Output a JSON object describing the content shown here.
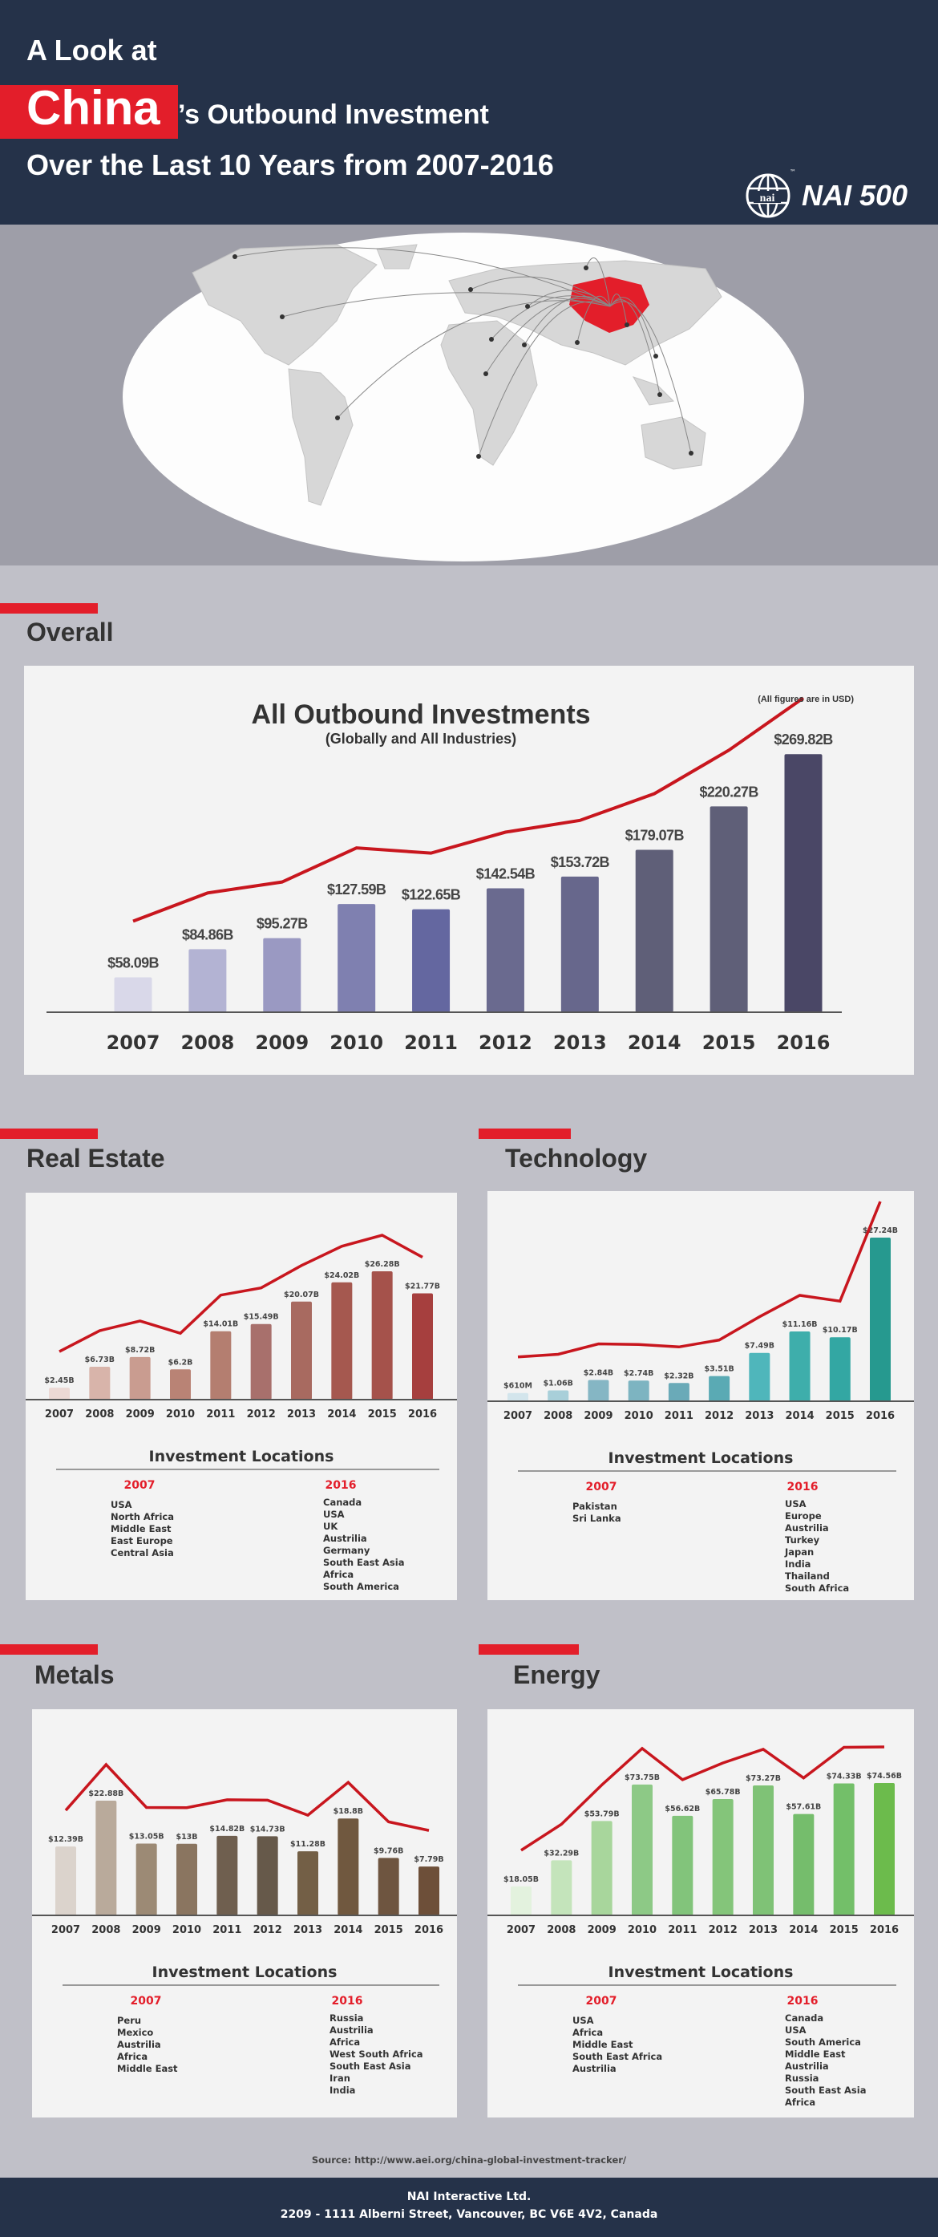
{
  "header": {
    "line1": "A Look at",
    "highlight": "China",
    "line2": "’s Outbound Investment",
    "line3": "Over the Last 10 Years from 2007-2016",
    "logo_text": "NAI 500",
    "logo_tm": "™",
    "logo_mark": "nai"
  },
  "sections": {
    "overall": "Overall",
    "real_estate": "Real Estate",
    "technology": "Technology",
    "metals": "Metals",
    "energy": "Energy"
  },
  "locations_title": "Investment Locations",
  "accent": "#e31e2a",
  "line_color": "#c8161e",
  "chart_data": [
    {
      "id": "overall",
      "type": "bar",
      "title": "All Outbound Investments",
      "subtitle": "(Globally and All Industries)",
      "note": "(All figures are in USD)",
      "categories": [
        "2007",
        "2008",
        "2009",
        "2010",
        "2011",
        "2012",
        "2013",
        "2014",
        "2015",
        "2016"
      ],
      "values": [
        58.09,
        84.86,
        95.27,
        127.59,
        122.65,
        142.54,
        153.72,
        179.07,
        220.27,
        269.82
      ],
      "labels": [
        "$58.09B",
        "$84.86B",
        "$95.27B",
        "$127.59B",
        "$122.65B",
        "$142.54B",
        "$153.72B",
        "$179.07B",
        "$220.27B",
        "$269.82B"
      ],
      "unit": "B USD",
      "ylim": [
        25,
        270
      ],
      "trend_line": true,
      "colors": [
        "#d9d8e9",
        "#b3b3d3",
        "#9a99c2",
        "#7f80b0",
        "#6467a0",
        "#6a6a8f",
        "#67678c",
        "#5f5f78",
        "#5f5f78",
        "#4a4766"
      ]
    },
    {
      "id": "real_estate",
      "type": "bar",
      "categories": [
        "2007",
        "2008",
        "2009",
        "2010",
        "2011",
        "2012",
        "2013",
        "2014",
        "2015",
        "2016"
      ],
      "values": [
        2.45,
        6.73,
        8.72,
        6.2,
        14.01,
        15.49,
        20.07,
        24.02,
        26.28,
        21.77
      ],
      "labels": [
        "$2.45B",
        "$6.73B",
        "$8.72B",
        "$6.2B",
        "$14.01B",
        "$15.49B",
        "$20.07B",
        "$24.02B",
        "$26.28B",
        "$21.77B"
      ],
      "ylim": [
        0,
        26.28
      ],
      "trend_line": true,
      "colors": [
        "#ecd9d5",
        "#d8b4aa",
        "#c99c90",
        "#b98375",
        "#b47e70",
        "#a8706c",
        "#a86a60",
        "#a5584f",
        "#a5524b",
        "#a63f3e"
      ],
      "locations": {
        "2007": [
          "USA",
          "North Africa",
          "Middle East",
          "East Europe",
          "Central Asia"
        ],
        "2016": [
          "Canada",
          "USA",
          "UK",
          "Austrilia",
          "Germany",
          "South East Asia",
          "Africa",
          "South America"
        ]
      }
    },
    {
      "id": "technology",
      "type": "bar",
      "categories": [
        "2007",
        "2008",
        "2009",
        "2010",
        "2011",
        "2012",
        "2013",
        "2014",
        "2015",
        "2016"
      ],
      "values": [
        0.61,
        1.06,
        2.84,
        2.74,
        2.32,
        3.51,
        7.49,
        11.16,
        10.17,
        27.24
      ],
      "labels": [
        "$610M",
        "$1.06B",
        "$2.84B",
        "$2.74B",
        "$2.32B",
        "$3.51B",
        "$7.49B",
        "$11.16B",
        "$10.17B",
        "$27.24B"
      ],
      "ylim": [
        -0.8,
        27.24
      ],
      "trend_line": true,
      "colors": [
        "#d3e5ec",
        "#a8cfd9",
        "#85b6c4",
        "#7db4c1",
        "#6aaab8",
        "#5aaab4",
        "#4fb6bb",
        "#3eaeab",
        "#33a7a3",
        "#26998f"
      ],
      "locations": {
        "2007": [
          "Pakistan",
          "Sri Lanka"
        ],
        "2016": [
          "USA",
          "Europe",
          "Austrilia",
          "Turkey",
          "Japan",
          "India",
          "Thailand",
          "South Africa"
        ]
      }
    },
    {
      "id": "metals",
      "type": "bar",
      "categories": [
        "2007",
        "2008",
        "2009",
        "2010",
        "2011",
        "2012",
        "2013",
        "2014",
        "2015",
        "2016"
      ],
      "values": [
        12.39,
        22.88,
        13.05,
        13,
        14.82,
        14.73,
        11.28,
        18.8,
        9.76,
        7.79
      ],
      "labels": [
        "$12.39B",
        "$22.88B",
        "$13.05B",
        "$13B",
        "$14.82B",
        "$14.73B",
        "$11.28B",
        "$18.8B",
        "$9.76B",
        "$7.79B"
      ],
      "ylim": [
        -3.4,
        22.88
      ],
      "trend_line": true,
      "colors": [
        "#dbd3cc",
        "#b9aa9b",
        "#9c8a75",
        "#8a7560",
        "#6f5f4f",
        "#66594a",
        "#735f46",
        "#70583f",
        "#6e5540",
        "#6d4f39"
      ],
      "locations": {
        "2007": [
          "Peru",
          "Mexico",
          "Austrilia",
          "Africa",
          "Middle East"
        ],
        "2016": [
          "Russia",
          "Austrilia",
          "Africa",
          "West South Africa",
          "South East Asia",
          "Iran",
          "India"
        ]
      }
    },
    {
      "id": "energy",
      "type": "bar",
      "categories": [
        "2007",
        "2008",
        "2009",
        "2010",
        "2011",
        "2012",
        "2013",
        "2014",
        "2015",
        "2016"
      ],
      "values": [
        18.05,
        32.29,
        53.79,
        73.75,
        56.62,
        65.78,
        73.27,
        57.61,
        74.33,
        74.56
      ],
      "labels": [
        "$18.05B",
        "$32.29B",
        "$53.79B",
        "$73.75B",
        "$56.62B",
        "$65.78B",
        "$73.27B",
        "$57.61B",
        "$74.33B",
        "$74.56B"
      ],
      "ylim": [
        2.2,
        74.56
      ],
      "trend_line": true,
      "colors": [
        "#e3f2de",
        "#c4e4bb",
        "#a8d69c",
        "#8dc986",
        "#82c47b",
        "#84c57a",
        "#7fc276",
        "#75bd6c",
        "#73bf69",
        "#6cbb4c"
      ],
      "locations": {
        "2007": [
          "USA",
          "Africa",
          "Middle East",
          "South East Africa",
          "Austrilia"
        ],
        "2016": [
          "Canada",
          "USA",
          "South America",
          "Middle East",
          "Austrilia",
          "Russia",
          "South East Asia",
          "Africa"
        ]
      }
    }
  ],
  "source": "Source: http://www.aei.org/china-global-investment-tracker/",
  "footer": {
    "company": "NAI Interactive Ltd.",
    "address": "2209 - 1111 Alberni Street, Vancouver, BC V6E 4V2, Canada"
  }
}
